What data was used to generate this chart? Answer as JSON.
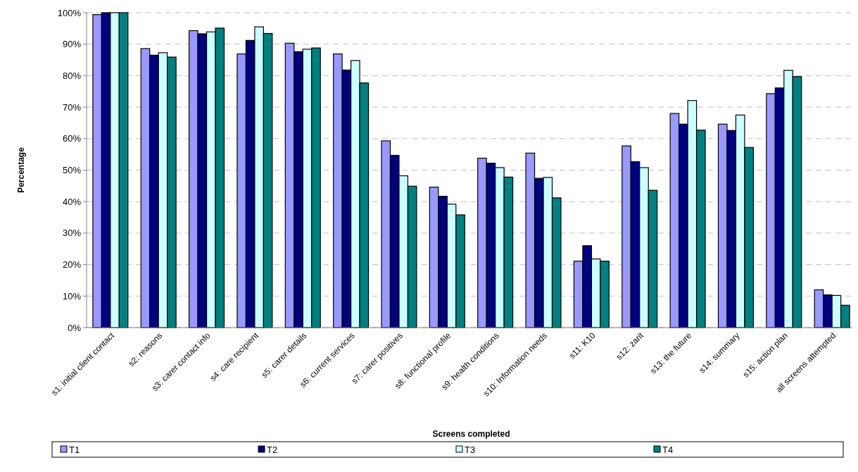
{
  "chart_data": {
    "type": "bar",
    "xlabel": "Screens completed",
    "ylabel": "Percentage",
    "categories": [
      "s1: initial client contact",
      "s2: reasons",
      "s3: carer contact info",
      "s4: care recipient",
      "s5: carer details",
      "s6: current services",
      "s7: carer positives",
      "s8: functional profile",
      "s9: health conditions",
      "s10: Information needs",
      "s11: K10",
      "s12: zarit",
      "s13: the future",
      "s14: summary",
      "s15: action plan",
      "all screens attempted"
    ],
    "series": [
      {
        "name": "T1",
        "color": "#9999ff",
        "values": [
          99.4,
          88.6,
          94.3,
          86.9,
          90.3,
          86.9,
          59.3,
          44.6,
          53.8,
          55.4,
          21.1,
          57.7,
          68.0,
          64.6,
          74.3,
          12.0
        ]
      },
      {
        "name": "T2",
        "color": "#000080",
        "values": [
          100,
          86.5,
          93.3,
          91.2,
          87.6,
          81.8,
          54.7,
          41.7,
          52.2,
          47.4,
          26.0,
          52.7,
          64.6,
          62.6,
          76.1,
          10.4
        ]
      },
      {
        "name": "T3",
        "color": "#ccffff",
        "values": [
          100,
          87.3,
          93.9,
          95.5,
          88.4,
          84.8,
          48.2,
          39.2,
          50.8,
          47.7,
          21.8,
          50.8,
          72.1,
          67.5,
          81.7,
          10.2
        ]
      },
      {
        "name": "T4",
        "color": "#008080",
        "values": [
          100,
          85.9,
          95.1,
          93.4,
          88.8,
          77.7,
          44.9,
          35.8,
          47.8,
          41.2,
          21.1,
          43.6,
          62.7,
          57.2,
          79.7,
          7.1
        ]
      }
    ],
    "ylim": [
      0,
      100
    ],
    "yticks": [
      {
        "value": 0,
        "label": "0%"
      },
      {
        "value": 10,
        "label": "10%"
      },
      {
        "value": 20,
        "label": "20%"
      },
      {
        "value": 30,
        "label": "30%"
      },
      {
        "value": 40,
        "label": "40%"
      },
      {
        "value": 50,
        "label": "50%"
      },
      {
        "value": 60,
        "label": "60%"
      },
      {
        "value": 70,
        "label": "70%"
      },
      {
        "value": 80,
        "label": "80%"
      },
      {
        "value": 90,
        "label": "90%"
      },
      {
        "value": 100,
        "label": "100%"
      }
    ],
    "grid": "y",
    "legend": "bottom"
  }
}
